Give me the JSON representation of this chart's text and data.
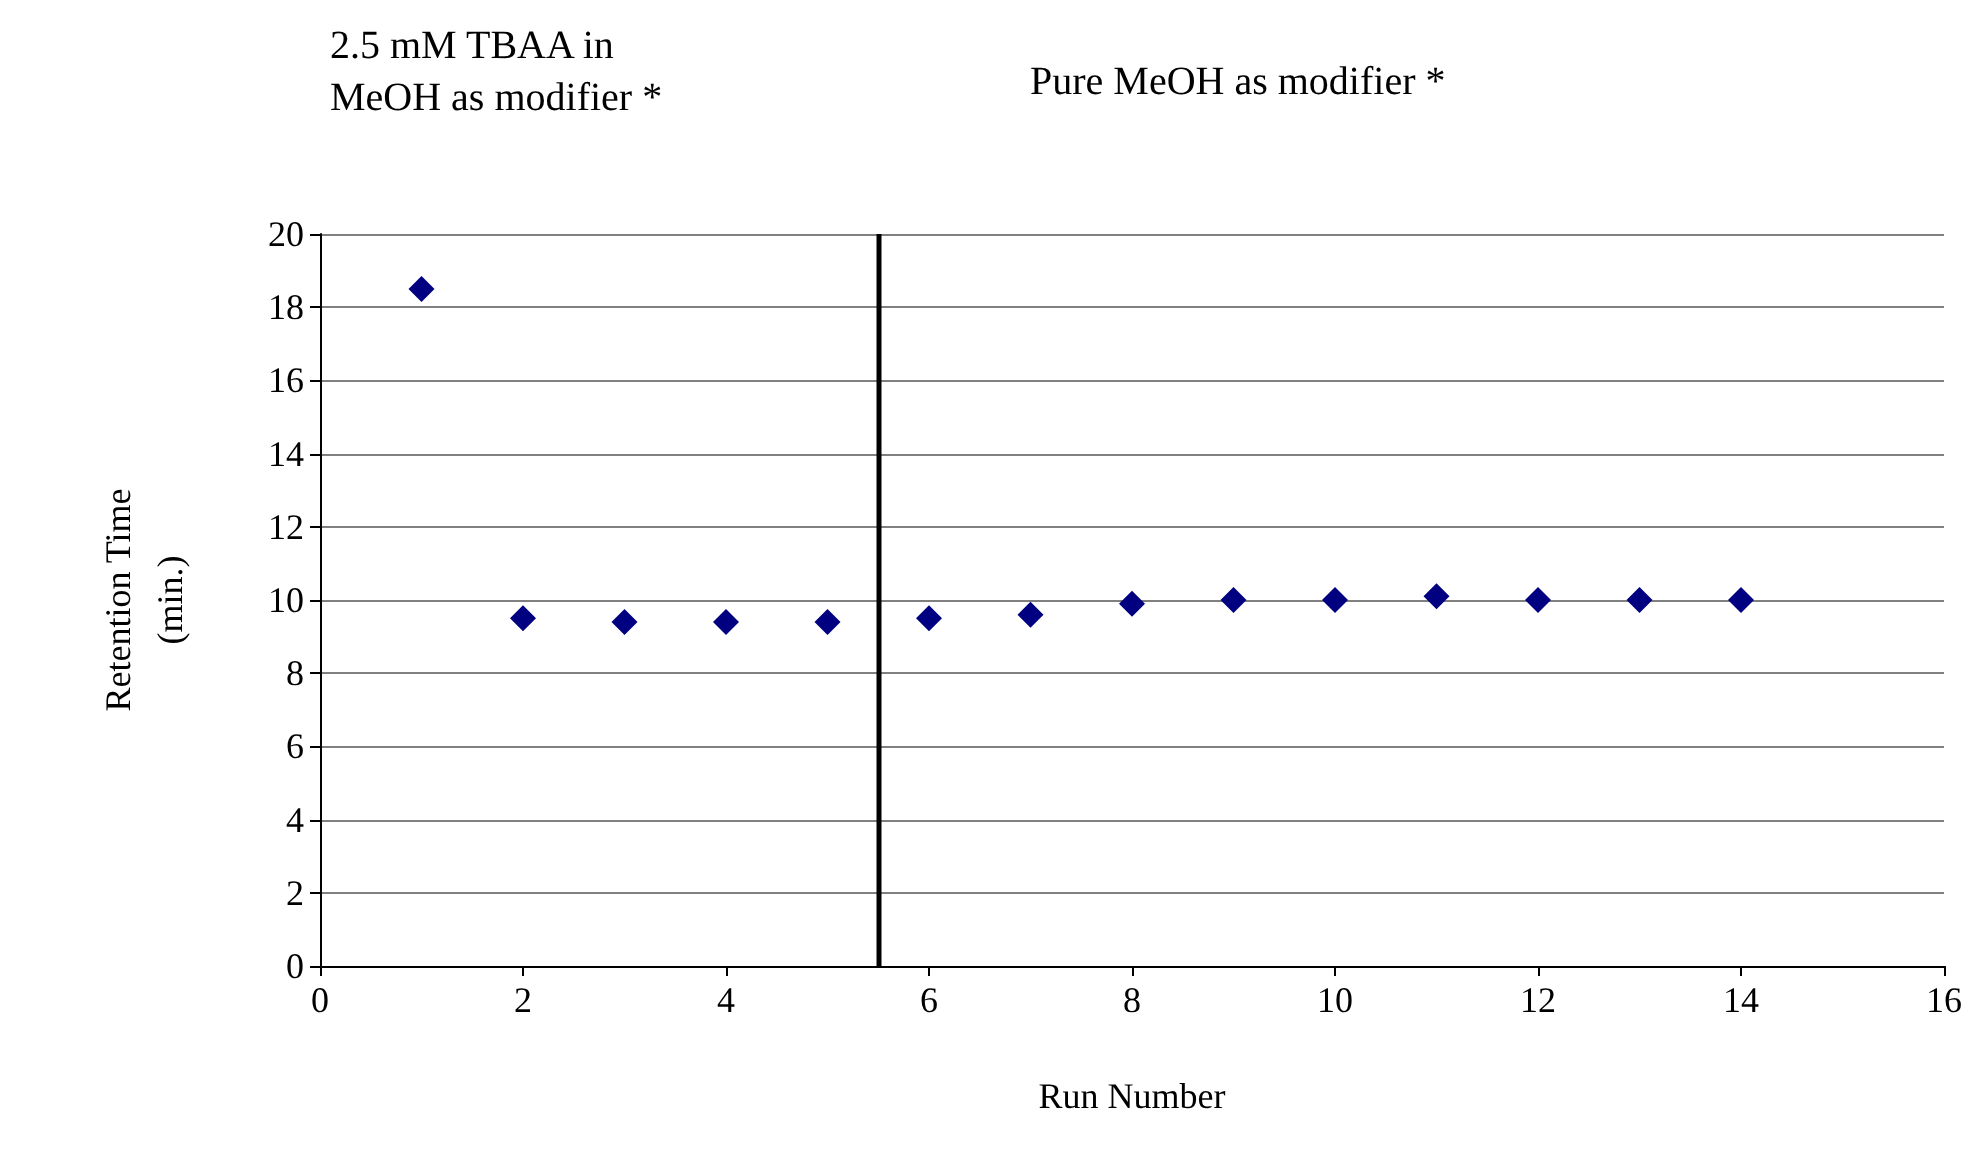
{
  "chart_data": {
    "type": "scatter",
    "xlabel": "Run Number",
    "ylabel": "Retention Time\n(min.)",
    "x": [
      1,
      2,
      3,
      4,
      5,
      6,
      7,
      8,
      9,
      10,
      11,
      12,
      13,
      14
    ],
    "series": [
      {
        "color": "#000080",
        "values": [
          18.5,
          9.5,
          9.4,
          9.4,
          9.4,
          9.5,
          9.6,
          9.9,
          10.0,
          10.0,
          10.1,
          10.0,
          10.0,
          10.0
        ]
      }
    ],
    "marker": "diamond",
    "xlim": [
      0,
      16
    ],
    "xticks": [
      0,
      2,
      4,
      6,
      8,
      10,
      12,
      14,
      16
    ],
    "ylim": [
      0,
      20
    ],
    "yticks": [
      0,
      2,
      4,
      6,
      8,
      10,
      12,
      14,
      16,
      18,
      20
    ],
    "grid": "y",
    "ref_lines": [
      {
        "axis": "x",
        "value": 5.5,
        "color": "#000000"
      }
    ],
    "annotations": [
      "2.5 mM TBAA in\nMeOH as modifier *",
      "Pure MeOH as modifier *"
    ]
  }
}
